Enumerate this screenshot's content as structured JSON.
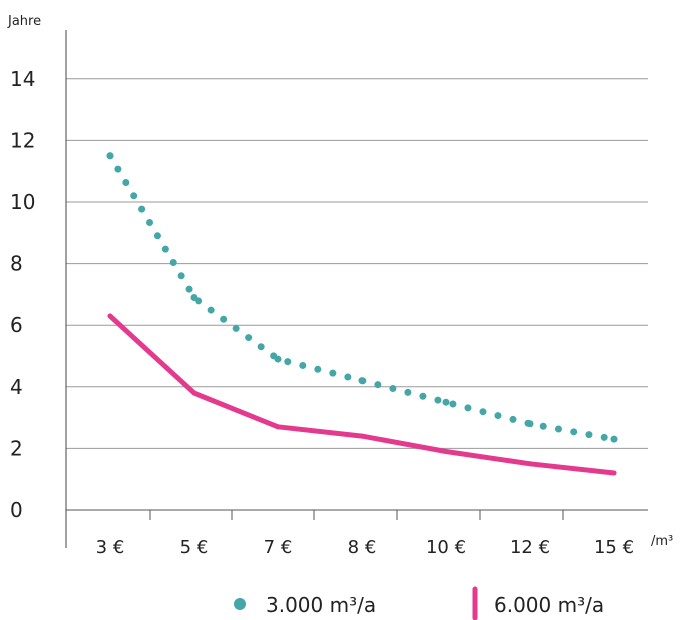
{
  "chart_data": {
    "type": "line",
    "ylabel": "Jahre",
    "xunit": "/m³",
    "categories": [
      "3 €",
      "5 €",
      "7 €",
      "8 €",
      "10 €",
      "12 €",
      "15 €"
    ],
    "ylim": [
      0,
      15
    ],
    "yticks": [
      0,
      2,
      4,
      6,
      8,
      10,
      12,
      14
    ],
    "grid": "horizontal",
    "legend_position": "bottom",
    "series": [
      {
        "name": "3.000 m³/a",
        "style": "dotted",
        "color": "#44a6a6",
        "values": [
          11.5,
          6.9,
          4.9,
          4.2,
          3.5,
          2.8,
          2.3
        ]
      },
      {
        "name": "6.000 m³/a",
        "style": "solid",
        "color": "#e33a8e",
        "values": [
          6.3,
          3.8,
          2.7,
          2.4,
          1.9,
          1.5,
          1.2
        ]
      }
    ]
  }
}
